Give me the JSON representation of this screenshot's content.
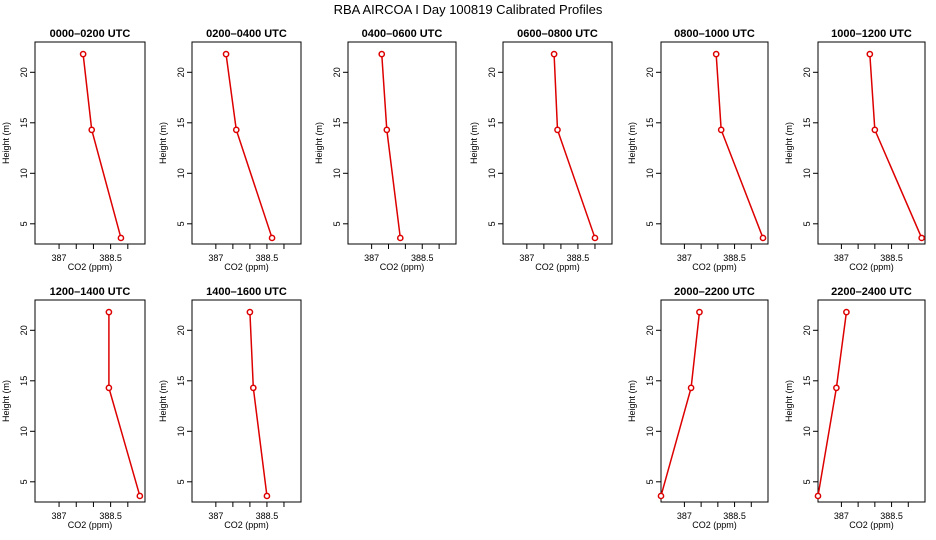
{
  "title": "RBA AIRCOA I  Day 100819  Calibrated Profiles",
  "colors": {
    "series": "#dd0000",
    "axis": "#000000"
  },
  "chart_data": [
    {
      "type": "line",
      "title": "0000–0200 UTC",
      "xlabel": "CO2 (ppm)",
      "ylabel": "Height (m)",
      "xlim": [
        386.3,
        389.5
      ],
      "ylim": [
        3,
        23
      ],
      "xticks": [
        387.0,
        388.5
      ],
      "xtick_minor": [
        387.5,
        388.0,
        389.0
      ],
      "yticks": [
        5,
        10,
        15,
        20
      ],
      "x": [
        388.8,
        387.95,
        387.7
      ],
      "y": [
        3.6,
        14.3,
        21.8
      ]
    },
    {
      "type": "line",
      "title": "0200–0400 UTC",
      "xlabel": "CO2 (ppm)",
      "ylabel": "Height (m)",
      "xlim": [
        386.3,
        389.5
      ],
      "ylim": [
        3,
        23
      ],
      "xticks": [
        387.0,
        388.5
      ],
      "xtick_minor": [
        387.5,
        388.0,
        389.0
      ],
      "yticks": [
        5,
        10,
        15,
        20
      ],
      "x": [
        388.65,
        387.6,
        387.3
      ],
      "y": [
        3.6,
        14.3,
        21.8
      ]
    },
    {
      "type": "line",
      "title": "0400–0600 UTC",
      "xlabel": "CO2 (ppm)",
      "ylabel": "Height (m)",
      "xlim": [
        386.3,
        389.5
      ],
      "ylim": [
        3,
        23
      ],
      "xticks": [
        387.0,
        388.5
      ],
      "xtick_minor": [
        387.5,
        388.0,
        389.0
      ],
      "yticks": [
        5,
        10,
        15,
        20
      ],
      "x": [
        387.85,
        387.45,
        387.3
      ],
      "y": [
        3.6,
        14.3,
        21.8
      ]
    },
    {
      "type": "line",
      "title": "0600–0800 UTC",
      "xlabel": "CO2 (ppm)",
      "ylabel": "Height (m)",
      "xlim": [
        386.3,
        389.5
      ],
      "ylim": [
        3,
        23
      ],
      "xticks": [
        387.0,
        388.5
      ],
      "xtick_minor": [
        387.5,
        388.0,
        389.0
      ],
      "yticks": [
        5,
        10,
        15,
        20
      ],
      "x": [
        389.0,
        387.9,
        387.8
      ],
      "y": [
        3.6,
        14.3,
        21.8
      ]
    },
    {
      "type": "line",
      "title": "0800–1000 UTC",
      "xlabel": "CO2 (ppm)",
      "ylabel": "Height (m)",
      "xlim": [
        386.3,
        389.5
      ],
      "ylim": [
        3,
        23
      ],
      "xticks": [
        387.0,
        388.5
      ],
      "xtick_minor": [
        387.5,
        388.0,
        389.0
      ],
      "yticks": [
        5,
        10,
        15,
        20
      ],
      "x": [
        389.35,
        388.1,
        387.95
      ],
      "y": [
        3.6,
        14.3,
        21.8
      ]
    },
    {
      "type": "line",
      "title": "1000–1200 UTC",
      "xlabel": "CO2 (ppm)",
      "ylabel": "Height (m)",
      "xlim": [
        386.3,
        389.5
      ],
      "ylim": [
        3,
        23
      ],
      "xticks": [
        387.0,
        388.5
      ],
      "xtick_minor": [
        387.5,
        388.0,
        389.0
      ],
      "yticks": [
        5,
        10,
        15,
        20
      ],
      "x": [
        389.4,
        388.0,
        387.85
      ],
      "y": [
        3.6,
        14.3,
        21.8
      ]
    },
    {
      "type": "line",
      "title": "1200–1400 UTC",
      "xlabel": "CO2 (ppm)",
      "ylabel": "Height (m)",
      "xlim": [
        386.3,
        389.5
      ],
      "ylim": [
        3,
        23
      ],
      "xticks": [
        387.0,
        388.5
      ],
      "xtick_minor": [
        387.5,
        388.0,
        389.0
      ],
      "yticks": [
        5,
        10,
        15,
        20
      ],
      "x": [
        389.35,
        388.45,
        388.45
      ],
      "y": [
        3.6,
        14.3,
        21.8
      ]
    },
    {
      "type": "line",
      "title": "1400–1600 UTC",
      "xlabel": "CO2 (ppm)",
      "ylabel": "Height (m)",
      "xlim": [
        386.3,
        389.5
      ],
      "ylim": [
        3,
        23
      ],
      "xticks": [
        387.0,
        388.5
      ],
      "xtick_minor": [
        387.5,
        388.0,
        389.0
      ],
      "yticks": [
        5,
        10,
        15,
        20
      ],
      "x": [
        388.5,
        388.1,
        388.0
      ],
      "y": [
        3.6,
        14.3,
        21.8
      ]
    },
    {
      "type": "line",
      "title": "2000–2200 UTC",
      "xlabel": "CO2 (ppm)",
      "ylabel": "Height (m)",
      "xlim": [
        386.3,
        389.5
      ],
      "ylim": [
        3,
        23
      ],
      "xticks": [
        387.0,
        388.5
      ],
      "xtick_minor": [
        387.5,
        388.0,
        389.0
      ],
      "yticks": [
        5,
        10,
        15,
        20
      ],
      "x": [
        386.3,
        387.2,
        387.45
      ],
      "y": [
        3.6,
        14.3,
        21.8
      ]
    },
    {
      "type": "line",
      "title": "2200–2400 UTC",
      "xlabel": "CO2 (ppm)",
      "ylabel": "Height (m)",
      "xlim": [
        386.3,
        389.5
      ],
      "ylim": [
        3,
        23
      ],
      "xticks": [
        387.0,
        388.5
      ],
      "xtick_minor": [
        387.5,
        388.0,
        389.0
      ],
      "yticks": [
        5,
        10,
        15,
        20
      ],
      "x": [
        386.3,
        386.85,
        387.15
      ],
      "y": [
        3.6,
        14.3,
        21.8
      ]
    }
  ]
}
